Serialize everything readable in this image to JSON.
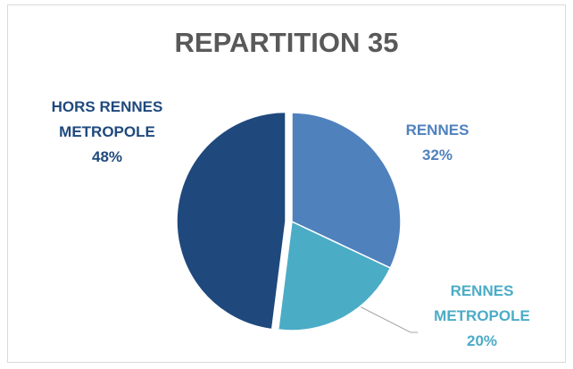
{
  "chart_data": {
    "type": "pie",
    "title": "REPARTITION 35",
    "categories": [
      "RENNES",
      "RENNES METROPOLE",
      "HORS RENNES METROPOLE"
    ],
    "values": [
      32,
      20,
      48
    ],
    "value_labels": [
      "32%",
      "20%",
      "48%"
    ],
    "colors": [
      "#4f81bd",
      "#4bacc6",
      "#1f497d"
    ]
  }
}
